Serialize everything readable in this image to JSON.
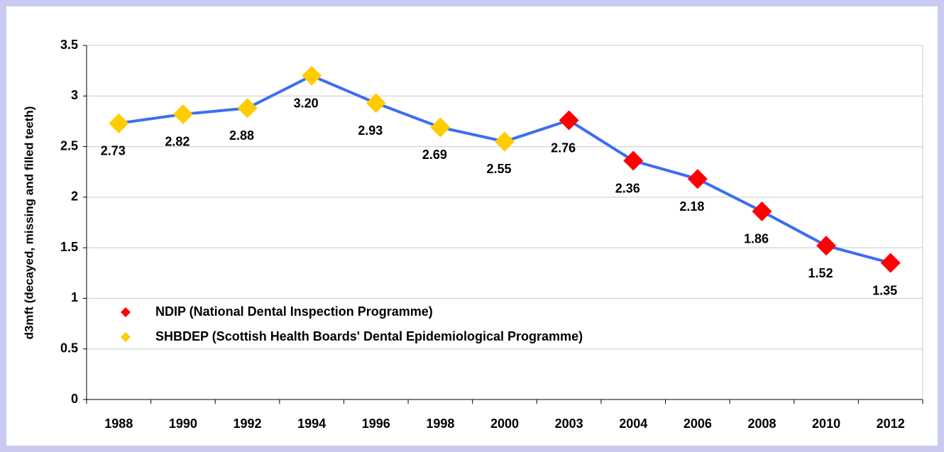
{
  "chart_data": {
    "type": "line",
    "y_label": "d3mft (decayed, missing and filled teeth)",
    "categories": [
      "1988",
      "1990",
      "1992",
      "1994",
      "1996",
      "1998",
      "2000",
      "2003",
      "2004",
      "2006",
      "2008",
      "2010",
      "2012"
    ],
    "line_color": "#3c6ef0",
    "series": [
      {
        "name": "NDIP (National Dental Inspection Programme)",
        "color": "#ff0000",
        "values": [
          null,
          null,
          null,
          null,
          null,
          null,
          null,
          2.76,
          2.36,
          2.18,
          1.86,
          1.52,
          1.35
        ],
        "value_labels": [
          null,
          null,
          null,
          null,
          null,
          null,
          null,
          "2.76",
          "2.36",
          "2.18",
          "1.86",
          "1.52",
          "1.35"
        ]
      },
      {
        "name": "SHBDEP (Scottish Health Boards' Dental Epidemiological Programme)",
        "color": "#ffcc00",
        "values": [
          2.73,
          2.82,
          2.88,
          3.2,
          2.93,
          2.69,
          2.55,
          null,
          null,
          null,
          null,
          null,
          null
        ],
        "value_labels": [
          "2.73",
          "2.82",
          "2.88",
          "3.20",
          "2.93",
          "2.69",
          "2.55",
          null,
          null,
          null,
          null,
          null,
          null
        ]
      }
    ],
    "ylim": [
      0,
      3.5
    ],
    "yticks": [
      0,
      0.5,
      1,
      1.5,
      2,
      2.5,
      3,
      3.5
    ],
    "grid": true,
    "legend": "lower-left"
  }
}
